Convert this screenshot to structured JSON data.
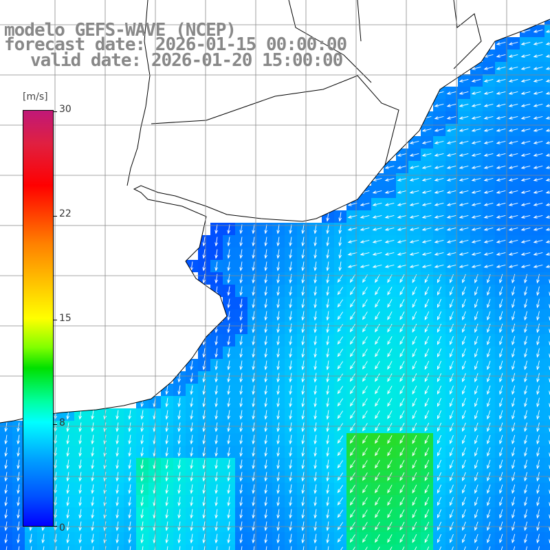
{
  "title": {
    "line1": "modelo GEFS-WAVE (NCEP)",
    "line2": "forecast date: 2026-01-15 00:00:00",
    "line3": "valid date: 2026-01-20 15:00:00"
  },
  "colorbar": {
    "unit": "[m/s]",
    "ticks": [
      "30",
      "22",
      "15",
      "8",
      "0"
    ]
  },
  "colors": {
    "land": "#ffffff",
    "coast": "#000000",
    "grid": "#888888",
    "arrow": "#ffffff",
    "title_text": "#888888"
  },
  "map_field": {
    "variable": "wind speed",
    "units": "m/s",
    "range": [
      0,
      30
    ],
    "arrow_direction": "mostly southward near coast, westward/south-westward offshore"
  }
}
